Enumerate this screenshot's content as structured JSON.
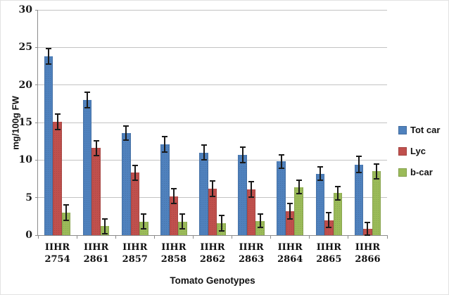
{
  "figure": {
    "background": "#FFFFFF",
    "gridline_color": "#C3C3C3",
    "axis_color": "#8C8C8C",
    "error_bar_color": "#1a1a1a",
    "text_color": "#111111"
  },
  "chart_data": {
    "type": "bar",
    "title": "",
    "xlabel": "Tomato Genotypes",
    "ylabel": "mg/100g FW",
    "ylim": [
      0,
      30
    ],
    "yticks": [
      0,
      5,
      10,
      15,
      20,
      25,
      30
    ],
    "grid": true,
    "legend_position": "right",
    "error_bars": true,
    "categories": [
      [
        "IIHR",
        "2754"
      ],
      [
        "IIHR",
        "2861"
      ],
      [
        "IIHR",
        "2857"
      ],
      [
        "IIHR",
        "2858"
      ],
      [
        "IIHR",
        "2862"
      ],
      [
        "IIHR",
        "2863"
      ],
      [
        "IIHR",
        "2864"
      ],
      [
        "IIHR",
        "2865"
      ],
      [
        "IIHR",
        "2866"
      ]
    ],
    "series": [
      {
        "name": "Tot car",
        "color": "#4F81BD",
        "values": [
          23.8,
          18.0,
          13.6,
          12.1,
          11.0,
          10.7,
          9.8,
          8.2,
          9.4
        ],
        "errors": [
          1.0,
          1.0,
          0.9,
          1.0,
          1.0,
          1.0,
          0.9,
          0.9,
          1.1
        ]
      },
      {
        "name": "Lyc",
        "color": "#C0504D",
        "values": [
          15.1,
          11.6,
          8.3,
          5.2,
          6.2,
          6.1,
          3.2,
          2.0,
          0.8
        ],
        "errors": [
          1.0,
          1.0,
          1.0,
          1.0,
          1.0,
          1.0,
          1.0,
          1.0,
          0.9
        ]
      },
      {
        "name": "b-car",
        "color": "#9BBB59",
        "values": [
          3.0,
          1.2,
          1.8,
          1.8,
          1.6,
          1.9,
          6.4,
          5.6,
          8.5
        ],
        "errors": [
          1.0,
          1.0,
          1.0,
          1.0,
          1.0,
          0.9,
          0.9,
          0.9,
          1.0
        ]
      }
    ]
  }
}
